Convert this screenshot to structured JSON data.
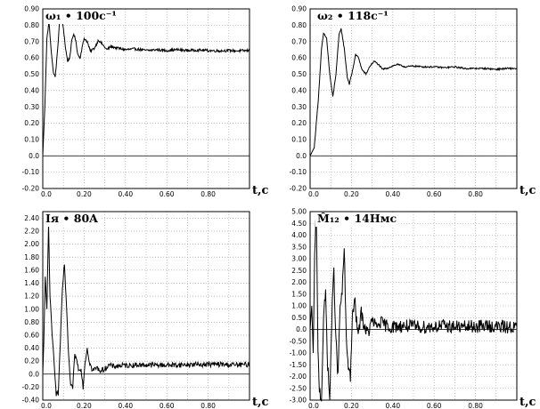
{
  "chart_data": [
    {
      "type": "line",
      "title": "ω₁ • 100c⁻¹",
      "x_label": "t,c",
      "xlim": [
        0,
        1.0
      ],
      "ylim": [
        -0.2,
        0.9
      ],
      "x_ticks": [
        "0.0",
        "0.20",
        "0.40",
        "0.60",
        "0.80"
      ],
      "y_ticks": [
        "-0.20",
        "-0.10",
        "0.0",
        "0.10",
        "0.20",
        "0.30",
        "0.40",
        "0.50",
        "0.60",
        "0.70",
        "0.80",
        "0.90"
      ],
      "series": [
        {
          "points": [
            [
              0,
              0
            ],
            [
              0.01,
              0.3
            ],
            [
              0.02,
              0.72
            ],
            [
              0.03,
              0.82
            ],
            [
              0.04,
              0.66
            ],
            [
              0.05,
              0.52
            ],
            [
              0.06,
              0.48
            ],
            [
              0.07,
              0.62
            ],
            [
              0.08,
              0.8
            ],
            [
              0.09,
              0.86
            ],
            [
              0.1,
              0.78
            ],
            [
              0.11,
              0.66
            ],
            [
              0.12,
              0.58
            ],
            [
              0.13,
              0.6
            ],
            [
              0.14,
              0.7
            ],
            [
              0.15,
              0.75
            ],
            [
              0.16,
              0.7
            ],
            [
              0.17,
              0.62
            ],
            [
              0.18,
              0.6
            ],
            [
              0.19,
              0.66
            ],
            [
              0.2,
              0.72
            ],
            [
              0.215,
              0.7
            ],
            [
              0.23,
              0.64
            ],
            [
              0.25,
              0.66
            ],
            [
              0.27,
              0.71
            ],
            [
              0.29,
              0.68
            ],
            [
              0.31,
              0.65
            ],
            [
              0.33,
              0.67
            ],
            [
              0.36,
              0.66
            ],
            [
              0.4,
              0.65
            ],
            [
              0.45,
              0.655
            ],
            [
              0.5,
              0.645
            ],
            [
              0.55,
              0.65
            ],
            [
              0.6,
              0.645
            ],
            [
              0.65,
              0.65
            ],
            [
              0.7,
              0.645
            ],
            [
              0.75,
              0.648
            ],
            [
              0.8,
              0.645
            ],
            [
              0.85,
              0.643
            ],
            [
              0.9,
              0.645
            ],
            [
              0.95,
              0.643
            ],
            [
              1.0,
              0.645
            ]
          ],
          "noise": 0.008
        }
      ]
    },
    {
      "type": "line",
      "title": "ω₂ • 118c⁻¹",
      "x_label": "t,c",
      "xlim": [
        0,
        1.0
      ],
      "ylim": [
        -0.2,
        0.9
      ],
      "x_ticks": [
        "0.0",
        "0.20",
        "0.40",
        "0.60",
        "0.80"
      ],
      "y_ticks": [
        "-0.20",
        "-0.10",
        "0.0",
        "0.10",
        "0.20",
        "0.30",
        "0.40",
        "0.50",
        "0.60",
        "0.70",
        "0.80",
        "0.90"
      ],
      "series": [
        {
          "points": [
            [
              0,
              0
            ],
            [
              0.02,
              0.05
            ],
            [
              0.04,
              0.35
            ],
            [
              0.055,
              0.65
            ],
            [
              0.065,
              0.75
            ],
            [
              0.08,
              0.72
            ],
            [
              0.095,
              0.5
            ],
            [
              0.11,
              0.36
            ],
            [
              0.125,
              0.5
            ],
            [
              0.14,
              0.74
            ],
            [
              0.15,
              0.78
            ],
            [
              0.165,
              0.66
            ],
            [
              0.18,
              0.48
            ],
            [
              0.19,
              0.44
            ],
            [
              0.205,
              0.52
            ],
            [
              0.22,
              0.62
            ],
            [
              0.235,
              0.6
            ],
            [
              0.25,
              0.53
            ],
            [
              0.27,
              0.5
            ],
            [
              0.29,
              0.55
            ],
            [
              0.31,
              0.58
            ],
            [
              0.33,
              0.56
            ],
            [
              0.35,
              0.53
            ],
            [
              0.38,
              0.54
            ],
            [
              0.42,
              0.56
            ],
            [
              0.46,
              0.545
            ],
            [
              0.5,
              0.55
            ],
            [
              0.55,
              0.545
            ],
            [
              0.6,
              0.545
            ],
            [
              0.65,
              0.54
            ],
            [
              0.7,
              0.545
            ],
            [
              0.75,
              0.535
            ],
            [
              0.8,
              0.535
            ],
            [
              0.85,
              0.535
            ],
            [
              0.9,
              0.53
            ],
            [
              0.95,
              0.535
            ],
            [
              1.0,
              0.535
            ]
          ],
          "noise": 0.005
        }
      ]
    },
    {
      "type": "line",
      "title": "Iя • 80A",
      "x_label": "t,c",
      "xlim": [
        0,
        1.0
      ],
      "ylim": [
        -0.4,
        2.5
      ],
      "x_ticks": [
        "0.0",
        "0.20",
        "0.40",
        "0.60",
        "0.80"
      ],
      "y_ticks": [
        "-0.40",
        "-0.20",
        "0.0",
        "0.20",
        "0.40",
        "0.60",
        "0.80",
        "1.00",
        "1.20",
        "1.40",
        "1.60",
        "1.80",
        "2.00",
        "2.20",
        "2.40"
      ],
      "series": [
        {
          "points": [
            [
              0,
              0
            ],
            [
              0.005,
              0.5
            ],
            [
              0.012,
              1.5
            ],
            [
              0.02,
              1.0
            ],
            [
              0.028,
              2.3
            ],
            [
              0.035,
              1.2
            ],
            [
              0.045,
              0.6
            ],
            [
              0.055,
              0.2
            ],
            [
              0.065,
              -0.3
            ],
            [
              0.075,
              -0.3
            ],
            [
              0.085,
              0.5
            ],
            [
              0.095,
              1.3
            ],
            [
              0.105,
              1.7
            ],
            [
              0.115,
              1.0
            ],
            [
              0.125,
              0.3
            ],
            [
              0.135,
              -0.2
            ],
            [
              0.145,
              -0.2
            ],
            [
              0.155,
              0.3
            ],
            [
              0.165,
              0.2
            ],
            [
              0.175,
              0.05
            ],
            [
              0.185,
              0.1
            ],
            [
              0.195,
              -0.2
            ],
            [
              0.205,
              0.2
            ],
            [
              0.215,
              0.4
            ],
            [
              0.225,
              0.2
            ],
            [
              0.24,
              0.05
            ],
            [
              0.26,
              0.1
            ],
            [
              0.28,
              0.05
            ],
            [
              0.3,
              0.08
            ],
            [
              0.32,
              0.14
            ],
            [
              0.34,
              0.12
            ],
            [
              0.38,
              0.13
            ],
            [
              0.45,
              0.14
            ],
            [
              0.55,
              0.14
            ],
            [
              0.65,
              0.14
            ],
            [
              0.75,
              0.15
            ],
            [
              0.85,
              0.15
            ],
            [
              0.95,
              0.14
            ],
            [
              1.0,
              0.15
            ]
          ],
          "noise": 0.04
        }
      ]
    },
    {
      "type": "line",
      "title": "M̂₁₂ • 14Нмс",
      "x_label": "t,c",
      "xlim": [
        0,
        1.0
      ],
      "ylim": [
        -3.0,
        5.0
      ],
      "x_ticks": [
        "0.0",
        "0.20",
        "0.40",
        "0.60",
        "0.80"
      ],
      "y_ticks": [
        "-3.00",
        "-2.50",
        "-2.00",
        "-1.50",
        "-1.00",
        "-0.50",
        "0.0",
        "0.50",
        "1.00",
        "1.50",
        "2.00",
        "2.50",
        "3.00",
        "3.50",
        "4.00",
        "4.50",
        "5.00"
      ],
      "series": [
        {
          "points": [
            [
              0,
              0
            ],
            [
              0.008,
              1.0
            ],
            [
              0.015,
              -1.0
            ],
            [
              0.022,
              3.0
            ],
            [
              0.03,
              5.0
            ],
            [
              0.038,
              -1.0
            ],
            [
              0.045,
              -2.5
            ],
            [
              0.055,
              -3.0
            ],
            [
              0.065,
              0.5
            ],
            [
              0.075,
              1.5
            ],
            [
              0.085,
              -1.5
            ],
            [
              0.095,
              -3.0
            ],
            [
              0.105,
              0.5
            ],
            [
              0.115,
              2.5
            ],
            [
              0.125,
              -0.5
            ],
            [
              0.135,
              -2.0
            ],
            [
              0.145,
              1.0
            ],
            [
              0.155,
              1.5
            ],
            [
              0.165,
              3.5
            ],
            [
              0.175,
              -0.5
            ],
            [
              0.185,
              -1.5
            ],
            [
              0.195,
              -2.0
            ],
            [
              0.205,
              0.5
            ],
            [
              0.215,
              1.3
            ],
            [
              0.225,
              0.3
            ],
            [
              0.235,
              -0.3
            ],
            [
              0.245,
              0.8
            ],
            [
              0.26,
              0.2
            ],
            [
              0.28,
              -0.2
            ],
            [
              0.3,
              0.4
            ],
            [
              0.32,
              0.1
            ],
            [
              0.34,
              0.3
            ],
            [
              0.38,
              0.1
            ],
            [
              0.45,
              0.15
            ],
            [
              0.55,
              0.1
            ],
            [
              0.65,
              0.15
            ],
            [
              0.75,
              0.1
            ],
            [
              0.85,
              0.15
            ],
            [
              0.95,
              0.1
            ],
            [
              1.0,
              0.1
            ]
          ],
          "noise": 0.28
        }
      ]
    }
  ]
}
